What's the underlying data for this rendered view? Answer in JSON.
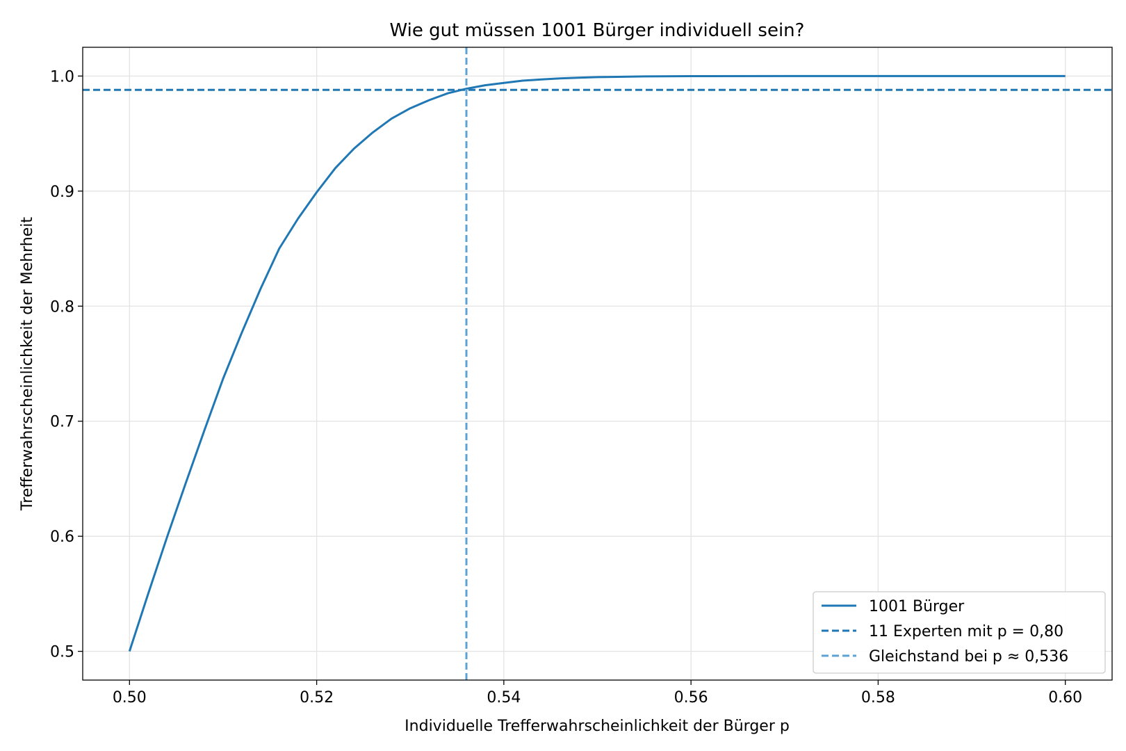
{
  "chart_data": {
    "type": "line",
    "title": "Wie gut müssen 1001 Bürger individuell sein?",
    "xlabel": "Individuelle Trefferwahrscheinlichkeit der Bürger p",
    "ylabel": "Trefferwahrscheinlichkeit der Mehrheit",
    "xlim": [
      0.495,
      0.605
    ],
    "ylim": [
      0.475,
      1.025
    ],
    "x_ticks": [
      0.5,
      0.52,
      0.54,
      0.56,
      0.58,
      0.6
    ],
    "x_tick_labels": [
      "0.50",
      "0.52",
      "0.54",
      "0.56",
      "0.58",
      "0.60"
    ],
    "y_ticks": [
      0.5,
      0.6,
      0.7,
      0.8,
      0.9,
      1.0
    ],
    "y_tick_labels": [
      "0.5",
      "0.6",
      "0.7",
      "0.8",
      "0.9",
      "1.0"
    ],
    "grid": true,
    "legend_position": "lower-right",
    "series": [
      {
        "name": "1001 Bürger",
        "style": "solid",
        "color": "#1f77b4",
        "x": [
          0.5,
          0.502,
          0.504,
          0.506,
          0.508,
          0.51,
          0.512,
          0.514,
          0.516,
          0.518,
          0.52,
          0.522,
          0.524,
          0.526,
          0.528,
          0.53,
          0.532,
          0.534,
          0.536,
          0.538,
          0.54,
          0.542,
          0.544,
          0.546,
          0.548,
          0.55,
          0.555,
          0.56,
          0.57,
          0.58,
          0.59,
          0.6
        ],
        "y": [
          0.5,
          0.55,
          0.599,
          0.646,
          0.692,
          0.737,
          0.777,
          0.815,
          0.85,
          0.876,
          0.899,
          0.92,
          0.937,
          0.951,
          0.963,
          0.972,
          0.979,
          0.985,
          0.989,
          0.992,
          0.994,
          0.996,
          0.997,
          0.998,
          0.9986,
          0.9991,
          0.9997,
          0.9999,
          1.0,
          1.0,
          1.0,
          1.0
        ]
      },
      {
        "name": "11 Experten mit p = 0,80",
        "style": "dashed",
        "orientation": "horizontal",
        "color": "#1f77b4",
        "y": 0.988
      },
      {
        "name": "Gleichstand bei p ≈ 0,536",
        "style": "dashed",
        "orientation": "vertical",
        "color": "#5ba3d6",
        "x": 0.536
      }
    ]
  }
}
